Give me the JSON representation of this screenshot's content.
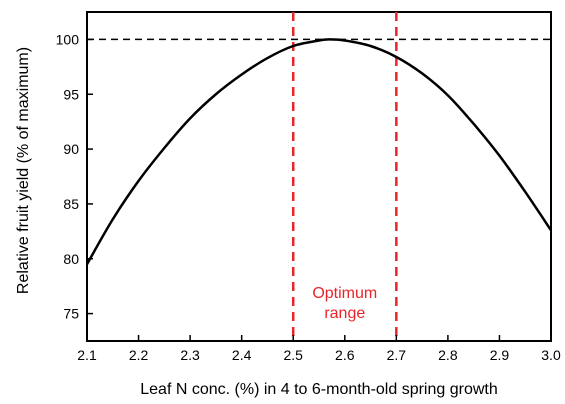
{
  "chart_data": {
    "type": "line",
    "title": "",
    "xlabel": "Leaf N conc. (%) in 4 to 6-month-old spring growth",
    "ylabel": "Relative fruit yield (% of maximum)",
    "xlim": [
      2.1,
      3.0
    ],
    "ylim": [
      72.5,
      102.5
    ],
    "x_ticks": [
      "2.1",
      "2.2",
      "2.3",
      "2.4",
      "2.5",
      "2.6",
      "2.7",
      "2.8",
      "2.9",
      "3.0"
    ],
    "y_ticks": [
      "75",
      "80",
      "85",
      "90",
      "95",
      "100"
    ],
    "grid": false,
    "series": [
      {
        "x": [
          2.1,
          2.15,
          2.2,
          2.25,
          2.3,
          2.35,
          2.4,
          2.45,
          2.5,
          2.55,
          2.57,
          2.6,
          2.65,
          2.7,
          2.75,
          2.8,
          2.85,
          2.9,
          2.95,
          3.0
        ],
        "y": [
          79.5,
          83.6,
          87.1,
          90.1,
          92.8,
          95.0,
          96.8,
          98.3,
          99.4,
          99.9,
          100.0,
          99.9,
          99.4,
          98.4,
          96.9,
          94.9,
          92.3,
          89.4,
          86.1,
          82.6
        ],
        "color": "#000000"
      }
    ],
    "reference_lines": [
      {
        "axis": "y",
        "value": 100,
        "style": "dashed",
        "color": "#000000"
      },
      {
        "axis": "x",
        "value": 2.5,
        "style": "dashed",
        "color": "#e8262a"
      },
      {
        "axis": "x",
        "value": 2.7,
        "style": "dashed",
        "color": "#e8262a"
      }
    ],
    "annotations": [
      {
        "text": "Optimum",
        "x": 2.6,
        "y": 76.4,
        "color": "#e8262a"
      },
      {
        "text": "range",
        "x": 2.6,
        "y": 74.6,
        "color": "#e8262a"
      }
    ]
  }
}
